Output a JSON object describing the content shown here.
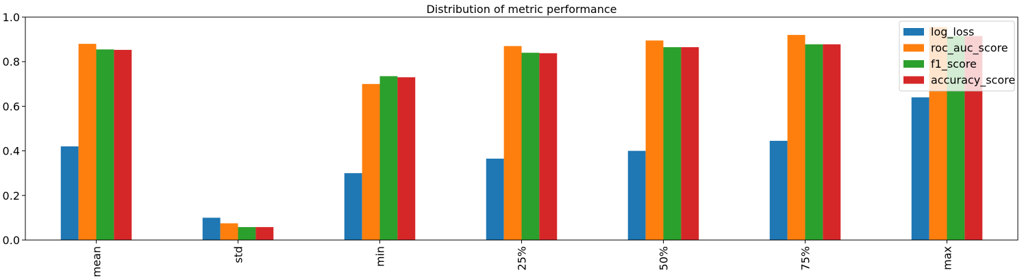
{
  "chart_data": {
    "type": "bar",
    "title": "Distribution of metric performance",
    "categories": [
      "mean",
      "std",
      "min",
      "25%",
      "50%",
      "75%",
      "max"
    ],
    "series": [
      {
        "name": "log_loss",
        "color": "#1f77b4",
        "values": [
          0.42,
          0.1,
          0.3,
          0.365,
          0.4,
          0.445,
          0.64
        ]
      },
      {
        "name": "roc_auc_score",
        "color": "#ff7f0e",
        "values": [
          0.88,
          0.075,
          0.7,
          0.87,
          0.895,
          0.92,
          0.955
        ]
      },
      {
        "name": "f1_score",
        "color": "#2ca02c",
        "values": [
          0.855,
          0.058,
          0.735,
          0.84,
          0.865,
          0.878,
          0.915
        ]
      },
      {
        "name": "accuracy_score",
        "color": "#d62728",
        "values": [
          0.853,
          0.058,
          0.73,
          0.838,
          0.865,
          0.878,
          0.915
        ]
      }
    ],
    "xlabel": "",
    "ylabel": "",
    "ylim": [
      0,
      1.0
    ],
    "yticks": [
      "0.0",
      "0.2",
      "0.4",
      "0.6",
      "0.8",
      "1.0"
    ],
    "grid": false,
    "legend": "top-right"
  }
}
